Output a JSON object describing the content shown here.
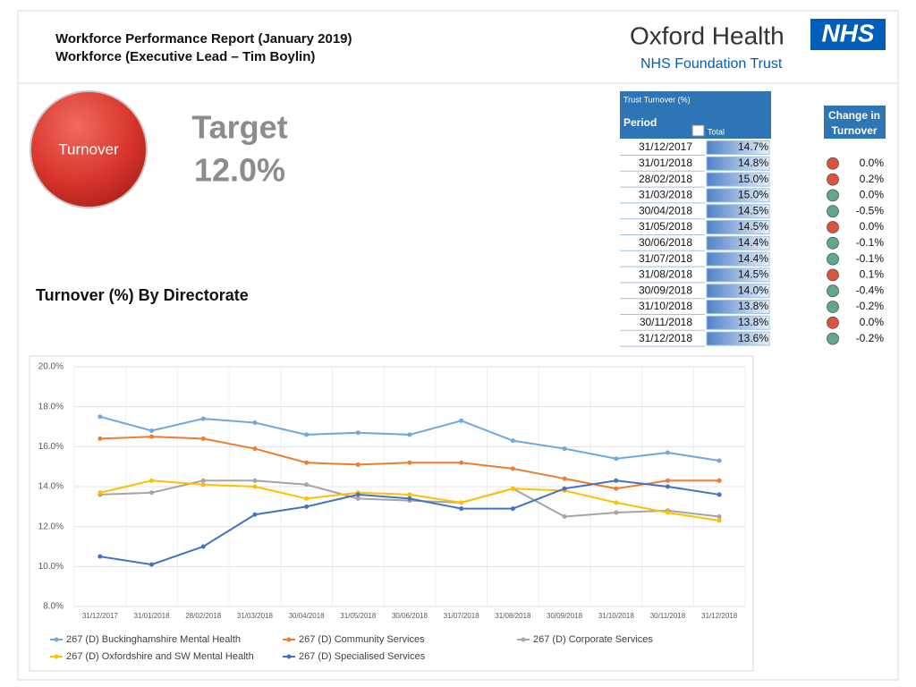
{
  "header": {
    "title": "Workforce Performance Report (January 2019)",
    "subtitle": "Workforce (Executive Lead – Tim Boylin)"
  },
  "logo": {
    "name": "Oxford Health",
    "badge": "NHS",
    "trust": "NHS Foundation Trust"
  },
  "kpi": {
    "label": "Turnover",
    "target_label": "Target",
    "target_value": "12.0%"
  },
  "section_title": "Turnover (%) By Directorate",
  "table": {
    "caption": "Trust Turnover (%)",
    "period_header": "Period",
    "total_header": "Total",
    "change_header": "Change in Turnover",
    "rows": [
      {
        "period": "31/12/2017",
        "total": "14.7%"
      },
      {
        "period": "31/01/2018",
        "total": "14.8%",
        "change": "0.0%",
        "indicator": "#d9553a"
      },
      {
        "period": "28/02/2018",
        "total": "15.0%",
        "change": "0.2%",
        "indicator": "#d9553a"
      },
      {
        "period": "31/03/2018",
        "total": "15.0%",
        "change": "0.0%",
        "indicator": "#5fa98a"
      },
      {
        "period": "30/04/2018",
        "total": "14.5%",
        "change": "-0.5%",
        "indicator": "#5fa98a"
      },
      {
        "period": "31/05/2018",
        "total": "14.5%",
        "change": "0.0%",
        "indicator": "#d9553a"
      },
      {
        "period": "30/06/2018",
        "total": "14.4%",
        "change": "-0.1%",
        "indicator": "#5fa98a"
      },
      {
        "period": "31/07/2018",
        "total": "14.4%",
        "change": "-0.1%",
        "indicator": "#5fa98a"
      },
      {
        "period": "31/08/2018",
        "total": "14.5%",
        "change": "0.1%",
        "indicator": "#d9553a"
      },
      {
        "period": "30/09/2018",
        "total": "14.0%",
        "change": "-0.4%",
        "indicator": "#5fa98a"
      },
      {
        "period": "31/10/2018",
        "total": "13.8%",
        "change": "-0.2%",
        "indicator": "#5fa98a"
      },
      {
        "period": "30/11/2018",
        "total": "13.8%",
        "change": "0.0%",
        "indicator": "#d9553a"
      },
      {
        "period": "31/12/2018",
        "total": "13.6%",
        "change": "-0.2%",
        "indicator": "#5fa98a"
      }
    ]
  },
  "chart_data": {
    "type": "line",
    "categories": [
      "31/12/2017",
      "31/01/2018",
      "28/02/2018",
      "31/03/2018",
      "30/04/2018",
      "31/05/2018",
      "30/06/2018",
      "31/07/2018",
      "31/08/2018",
      "30/09/2018",
      "31/10/2018",
      "30/11/2018",
      "31/12/2018"
    ],
    "ylim": [
      8,
      20
    ],
    "yticks": [
      {
        "value": 8,
        "label": "8.0%"
      },
      {
        "value": 10,
        "label": "10.0%"
      },
      {
        "value": 12,
        "label": "12.0%"
      },
      {
        "value": 14,
        "label": "14.0%"
      },
      {
        "value": 16,
        "label": "16.0%"
      },
      {
        "value": 18,
        "label": "18.0%"
      },
      {
        "value": 20,
        "label": "20.0%"
      }
    ],
    "grid": true,
    "legend": "bottom",
    "series": [
      {
        "name": "267 (D) Buckinghamshire Mental Health",
        "color": "#6fa8dc",
        "values": [
          17.5,
          16.8,
          17.4,
          17.2,
          16.6,
          16.7,
          16.6,
          17.3,
          16.3,
          15.9,
          15.4,
          15.7,
          15.3
        ]
      },
      {
        "name": "267 (D) Community Services",
        "color": "#ed7d31",
        "values": [
          16.4,
          16.5,
          16.4,
          15.9,
          15.2,
          15.1,
          15.2,
          15.2,
          14.9,
          14.4,
          13.9,
          14.3,
          14.3
        ]
      },
      {
        "name": "267 (D) Corporate Services",
        "color": "#a5a5a5",
        "values": [
          13.6,
          13.7,
          14.3,
          14.3,
          14.1,
          13.4,
          13.3,
          13.2,
          13.9,
          12.5,
          12.7,
          12.8,
          12.5
        ]
      },
      {
        "name": "267 (D) Oxfordshire and SW Mental Health",
        "color": "#ffc000",
        "values": [
          13.7,
          14.3,
          14.1,
          14.0,
          13.4,
          13.7,
          13.6,
          13.2,
          13.9,
          13.8,
          13.2,
          12.7,
          12.3
        ]
      },
      {
        "name": "267 (D) Specialised Services",
        "color": "#4472c4",
        "values": [
          10.5,
          10.1,
          11.0,
          12.6,
          13.0,
          13.6,
          13.4,
          12.9,
          12.9,
          13.9,
          14.3,
          14.0,
          13.6
        ]
      }
    ]
  }
}
